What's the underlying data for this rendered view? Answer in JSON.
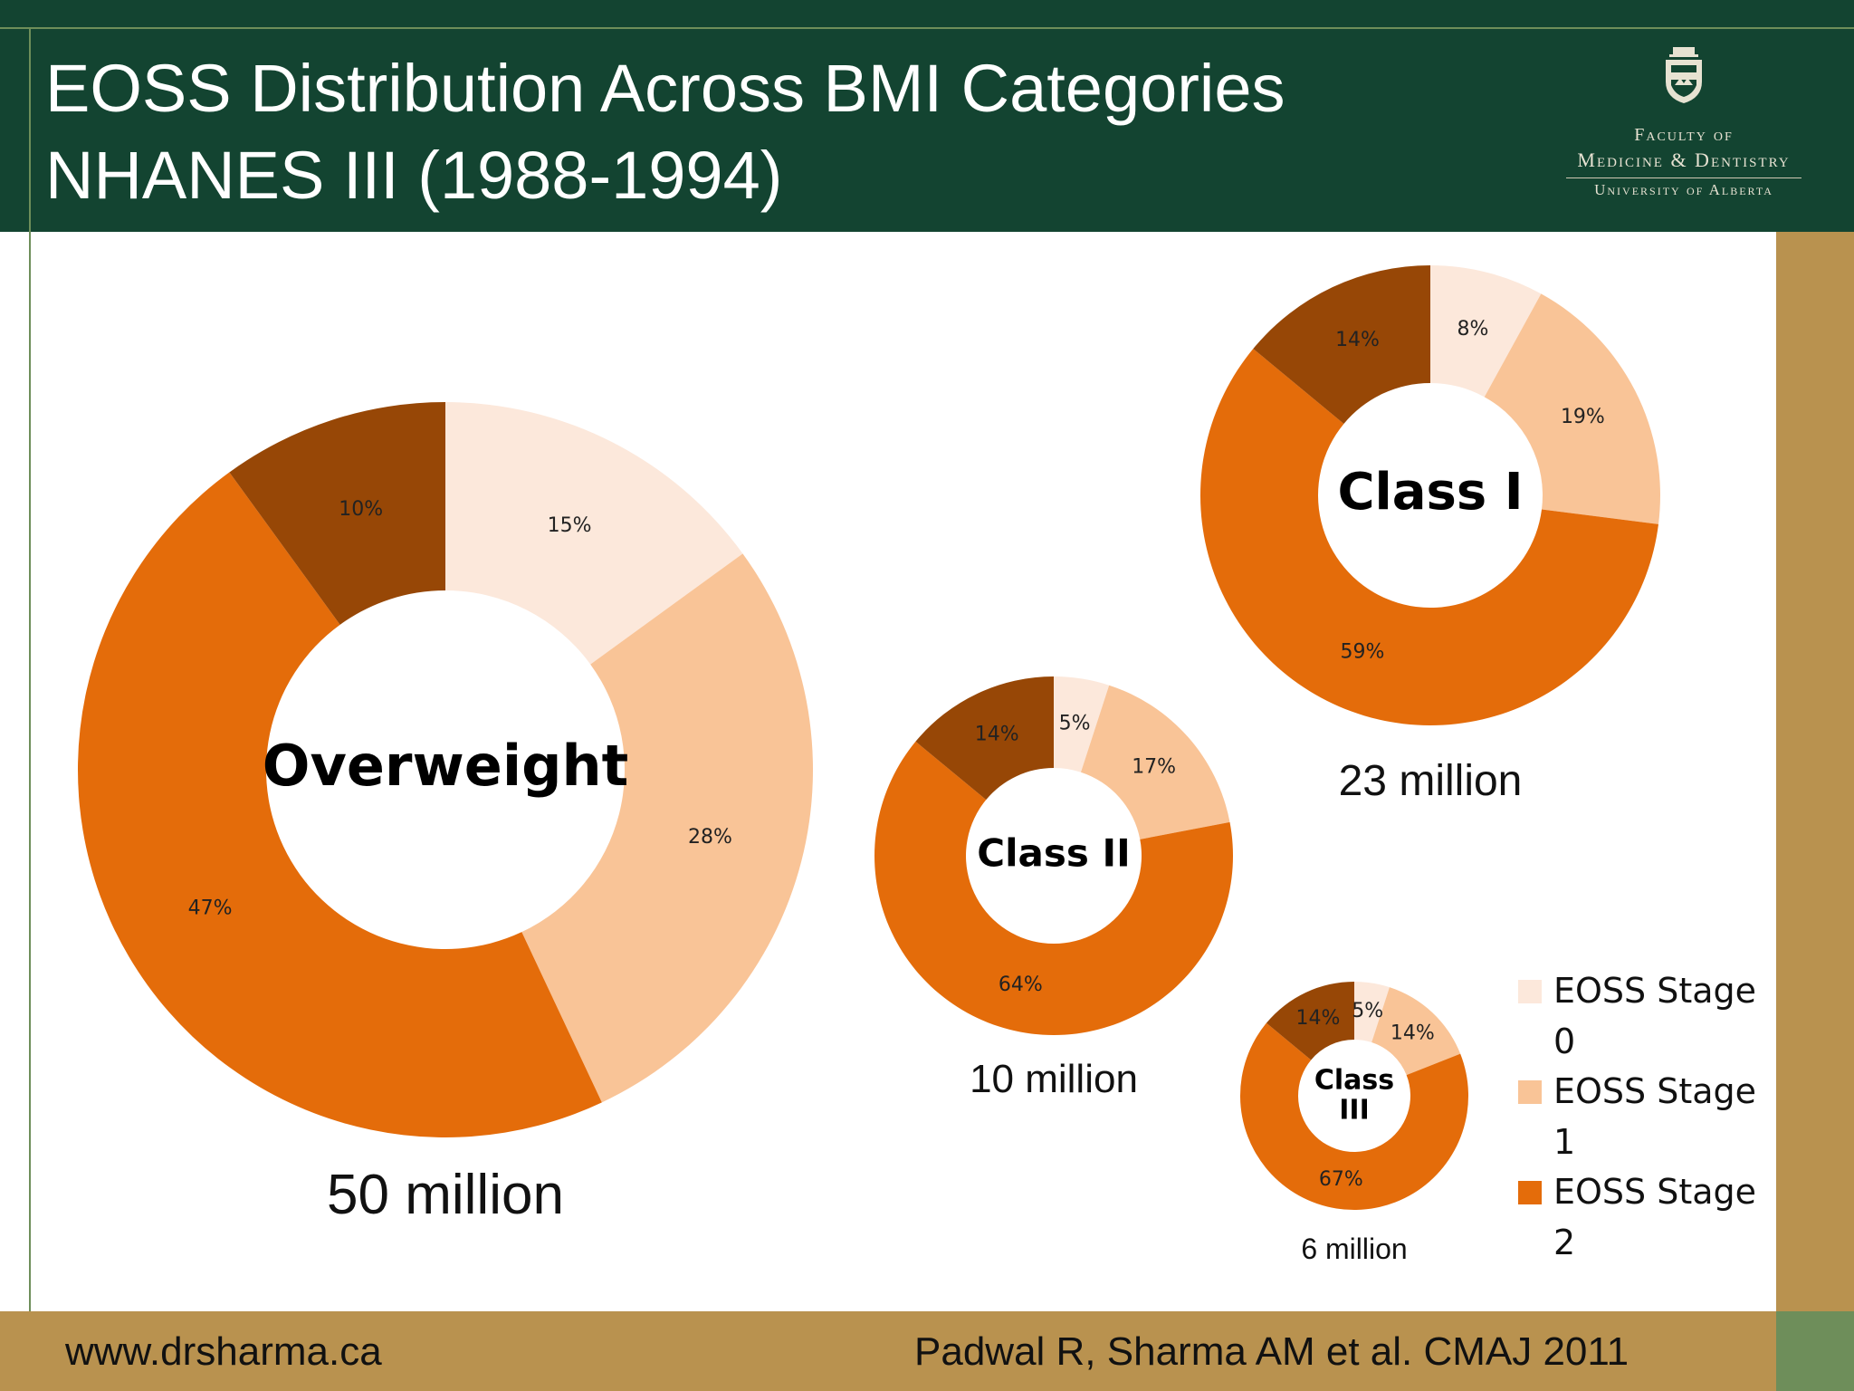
{
  "header": {
    "title_line1": "EOSS Distribution Across BMI Categories",
    "title_line2": "NHANES III (1988-1994)",
    "logo": {
      "line1": "Faculty of",
      "line2": "Medicine & Dentistry",
      "line3": "University of Alberta"
    }
  },
  "footer": {
    "website": "www.drsharma.ca",
    "citation": "Padwal R, Sharma AM  et al. CMAJ 2011"
  },
  "colors": {
    "header_bg": "#134431",
    "accent_band": "#b9924f",
    "stage0": "#fce8db",
    "stage1": "#f9c497",
    "stage2": "#e46c0a",
    "stage3": "#974706"
  },
  "chart_data": [
    {
      "type": "pie",
      "variant": "donut",
      "center_label": "Overweight",
      "total_label": "50 million",
      "categories": [
        "EOSS Stage 0",
        "EOSS Stage 1",
        "EOSS Stage 2",
        ""
      ],
      "values": [
        15,
        28,
        47,
        10
      ],
      "labels": [
        "15%",
        "28%",
        "47%",
        "10%"
      ]
    },
    {
      "type": "pie",
      "variant": "donut",
      "center_label": "Class I",
      "total_label": "23 million",
      "categories": [
        "EOSS Stage 0",
        "EOSS Stage 1",
        "EOSS Stage 2",
        ""
      ],
      "values": [
        8,
        19,
        59,
        14
      ],
      "labels": [
        "8%",
        "19%",
        "59%",
        "14%"
      ]
    },
    {
      "type": "pie",
      "variant": "donut",
      "center_label": "Class II",
      "total_label": "10 million",
      "categories": [
        "EOSS Stage 0",
        "EOSS Stage 1",
        "EOSS Stage 2",
        ""
      ],
      "values": [
        5,
        17,
        64,
        14
      ],
      "labels": [
        "5%",
        "17%",
        "64%",
        "14%"
      ]
    },
    {
      "type": "pie",
      "variant": "donut",
      "center_label": "Class III",
      "total_label": "6 million",
      "categories": [
        "EOSS Stage 0",
        "EOSS Stage 1",
        "EOSS Stage 2",
        ""
      ],
      "values": [
        5,
        14,
        67,
        14
      ],
      "labels": [
        "5%",
        "14%",
        "67%",
        "14%"
      ]
    }
  ],
  "legend": {
    "placement": "bottom-right",
    "items": [
      {
        "line1": "EOSS Stage",
        "line2": "0",
        "color": "#fce8db"
      },
      {
        "line1": "EOSS Stage",
        "line2": "1",
        "color": "#f9c497"
      },
      {
        "line1": "EOSS Stage",
        "line2": "2",
        "color": "#e46c0a"
      }
    ]
  }
}
